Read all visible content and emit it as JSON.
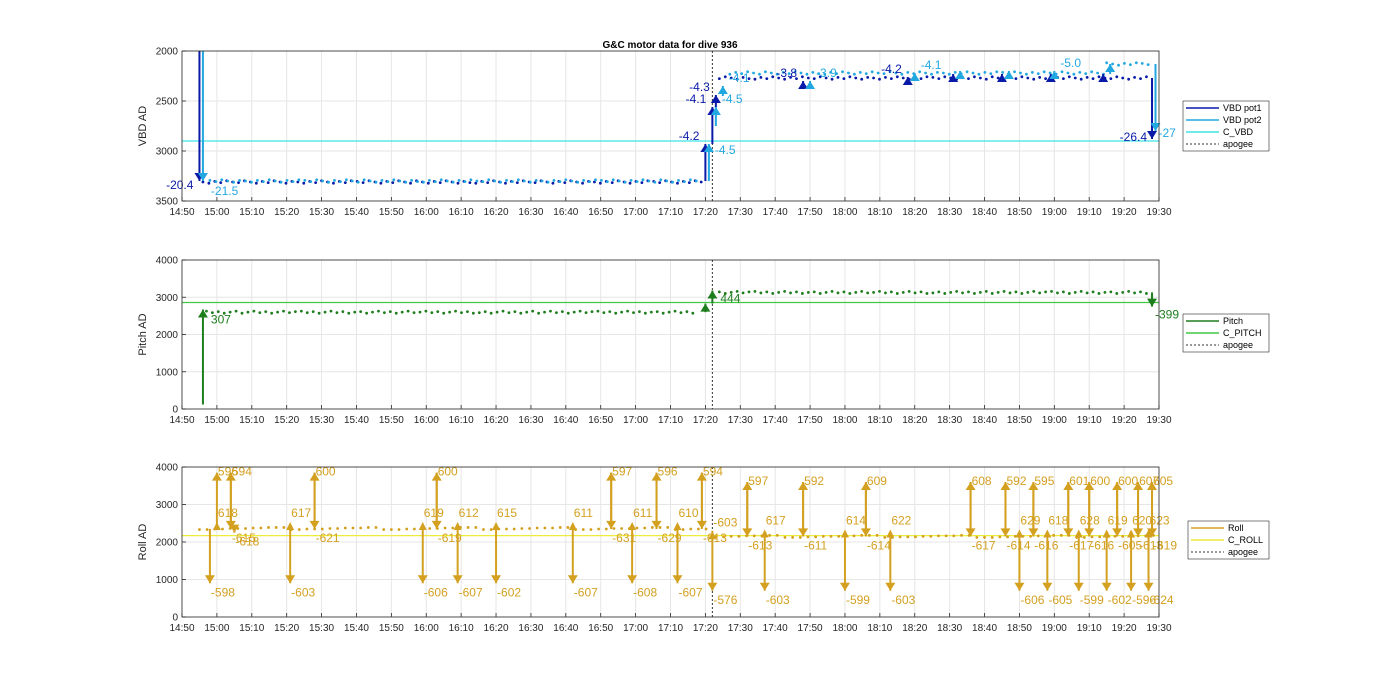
{
  "figure_title": "G&C motor data for dive 936",
  "colors": {
    "vbd1": "#0a1aa8",
    "vbd2": "#22a8e0",
    "c_vbd": "#3fe3e3",
    "pitch": "#1e7e1e",
    "c_pitch": "#42c842",
    "roll": "#d4a020",
    "c_roll": "#ecec3a",
    "apogee": "#333333",
    "grid": "#e6e6e6"
  },
  "chart_data": [
    {
      "type": "line",
      "ylabel": "VBD AD",
      "xlabel": "",
      "ylim": [
        3500,
        2000
      ],
      "y_reversed": true,
      "x_range": [
        "14:50",
        "19:30"
      ],
      "yticks": [
        "2000",
        "2500",
        "3000",
        "3500"
      ],
      "xticks": [
        "14:50",
        "15:00",
        "15:10",
        "15:20",
        "15:30",
        "15:40",
        "15:50",
        "16:00",
        "16:10",
        "16:20",
        "16:30",
        "16:40",
        "16:50",
        "17:00",
        "17:10",
        "17:20",
        "17:30",
        "17:40",
        "17:50",
        "18:00",
        "18:10",
        "18:20",
        "18:30",
        "18:40",
        "18:50",
        "19:00",
        "19:10",
        "19:20",
        "19:30"
      ],
      "grid": true,
      "legend": [
        "VBD pot1",
        "VBD pot2",
        "C_VBD",
        "apogee"
      ],
      "legend_position": "right",
      "apogee": "17:22",
      "c_value": 2900,
      "series": [
        {
          "name": "VBD pot1",
          "segments": [
            {
              "from": "14:56",
              "to": "17:20",
              "value": 3310
            },
            {
              "from": "17:24",
              "to": "19:27",
              "value": 2270
            }
          ]
        },
        {
          "name": "VBD pot2",
          "segments": [
            {
              "from": "14:58",
              "to": "17:19",
              "value": 3300
            },
            {
              "from": "17:27",
              "to": "19:15",
              "value": 2220
            },
            {
              "from": "19:15",
              "to": "19:28",
              "value": 2130
            }
          ]
        }
      ],
      "moves": [
        {
          "t": "14:55",
          "from": 1850,
          "to": 3300,
          "series": "VBD pot1",
          "label": "-20.4"
        },
        {
          "t": "14:56",
          "from": 1870,
          "to": 3300,
          "series": "VBD pot2",
          "label": "-21.5"
        },
        {
          "t": "17:20",
          "from": 3300,
          "to": 2930,
          "series": "VBD pot1",
          "label": "-4.2"
        },
        {
          "t": "17:21",
          "from": 3300,
          "to": 2930,
          "series": "VBD pot2",
          "label": "-4.5"
        },
        {
          "t": "17:22",
          "from": 2930,
          "to": 2560,
          "series": "VBD pot1",
          "label": "-4.1"
        },
        {
          "t": "17:23",
          "from": 2560,
          "to": 2440,
          "series": "VBD pot1",
          "label": "-4.3"
        },
        {
          "t": "17:23",
          "from": 2750,
          "to": 2560,
          "series": "VBD pot2",
          "label": "-4.5"
        },
        {
          "t": "17:25",
          "from": 2450,
          "to": 2350,
          "series": "VBD pot2",
          "label": "-4.1"
        },
        {
          "t": "17:48",
          "from": 2380,
          "to": 2300,
          "series": "VBD pot1",
          "label": "-3.8"
        },
        {
          "t": "17:50",
          "from": 2380,
          "to": 2300,
          "series": "VBD pot2",
          "label": "-3.9"
        },
        {
          "t": "18:18",
          "from": 2340,
          "to": 2260,
          "series": "VBD pot1",
          "label": "-4.2"
        },
        {
          "t": "18:20",
          "from": 2300,
          "to": 2220,
          "series": "VBD pot2",
          "label": "-4.1"
        },
        {
          "t": "18:31",
          "from": 2310,
          "to": 2230,
          "series": "VBD pot1",
          "label": ""
        },
        {
          "t": "18:33",
          "from": 2280,
          "to": 2200,
          "series": "VBD pot2",
          "label": ""
        },
        {
          "t": "18:45",
          "from": 2310,
          "to": 2230,
          "series": "VBD pot1",
          "label": ""
        },
        {
          "t": "18:47",
          "from": 2280,
          "to": 2200,
          "series": "VBD pot2",
          "label": ""
        },
        {
          "t": "18:59",
          "from": 2310,
          "to": 2230,
          "series": "VBD pot1",
          "label": ""
        },
        {
          "t": "19:00",
          "from": 2280,
          "to": 2200,
          "series": "VBD pot2",
          "label": "-5.0"
        },
        {
          "t": "19:14",
          "from": 2310,
          "to": 2230,
          "series": "VBD pot1",
          "label": ""
        },
        {
          "t": "19:16",
          "from": 2230,
          "to": 2130,
          "series": "VBD pot2",
          "label": ""
        },
        {
          "t": "19:28",
          "from": 2270,
          "to": 2880,
          "series": "VBD pot1",
          "label": "-26.4"
        },
        {
          "t": "19:29",
          "from": 2130,
          "to": 2800,
          "series": "VBD pot2",
          "label": "-27"
        }
      ]
    },
    {
      "type": "line",
      "ylabel": "Pitch AD",
      "xlabel": "",
      "ylim": [
        0,
        4000
      ],
      "x_range": [
        "14:50",
        "19:30"
      ],
      "yticks": [
        "0",
        "1000",
        "2000",
        "3000",
        "4000"
      ],
      "xticks": [
        "14:50",
        "15:00",
        "15:10",
        "15:20",
        "15:30",
        "15:40",
        "15:50",
        "16:00",
        "16:10",
        "16:20",
        "16:30",
        "16:40",
        "16:50",
        "17:00",
        "17:10",
        "17:20",
        "17:30",
        "17:40",
        "17:50",
        "18:00",
        "18:10",
        "18:20",
        "18:30",
        "18:40",
        "18:50",
        "19:00",
        "19:10",
        "19:20",
        "19:30"
      ],
      "grid": true,
      "legend": [
        "Pitch",
        "C_PITCH",
        "apogee"
      ],
      "legend_position": "right",
      "apogee": "17:22",
      "c_value": 2860,
      "series": [
        {
          "name": "Pitch",
          "segments": [
            {
              "from": "14:57",
              "to": "17:18",
              "value": 2600
            },
            {
              "from": "17:24",
              "to": "19:27",
              "value": 3130
            }
          ]
        }
      ],
      "moves": [
        {
          "t": "14:56",
          "from": 120,
          "to": 2670,
          "series": "Pitch",
          "label": "307"
        },
        {
          "t": "17:20",
          "from": 2600,
          "to": 2830,
          "series": "Pitch",
          "label": ""
        },
        {
          "t": "17:22",
          "from": 2830,
          "to": 3180,
          "series": "Pitch",
          "label": "444"
        },
        {
          "t": "19:28",
          "from": 3130,
          "to": 2750,
          "series": "Pitch",
          "label": "-399"
        }
      ]
    },
    {
      "type": "line",
      "ylabel": "Roll AD",
      "xlabel": "",
      "ylim": [
        0,
        4000
      ],
      "x_range": [
        "14:50",
        "19:30"
      ],
      "yticks": [
        "0",
        "1000",
        "2000",
        "3000",
        "4000"
      ],
      "xticks": [
        "14:50",
        "15:00",
        "15:10",
        "15:20",
        "15:30",
        "15:40",
        "15:50",
        "16:00",
        "16:10",
        "16:20",
        "16:30",
        "16:40",
        "16:50",
        "17:00",
        "17:10",
        "17:20",
        "17:30",
        "17:40",
        "17:50",
        "18:00",
        "18:10",
        "18:20",
        "18:30",
        "18:40",
        "18:50",
        "19:00",
        "19:10",
        "19:20",
        "19:30"
      ],
      "grid": true,
      "legend": [
        "Roll",
        "C_ROLL",
        "apogee"
      ],
      "legend_position": "right",
      "apogee": "17:22",
      "c_value": 2170,
      "series": [
        {
          "name": "Roll",
          "segments": [
            {
              "from": "14:55",
              "to": "17:21",
              "value": 2360
            },
            {
              "from": "17:23",
              "to": "19:29",
              "value": 2150
            }
          ]
        }
      ],
      "moves": [
        {
          "t": "14:58",
          "from": 2350,
          "to": 900,
          "label": "-598"
        },
        {
          "t": "15:00",
          "from": 2350,
          "to": 3850,
          "label": "596"
        },
        {
          "t": "15:04",
          "from": 3850,
          "to": 2350,
          "label": "-615"
        },
        {
          "t": "15:04",
          "from": 2350,
          "to": 3850,
          "label": "594"
        },
        {
          "t": "15:00",
          "from": 2350,
          "to": 2400,
          "label": "618"
        },
        {
          "t": "15:05",
          "from": 2350,
          "to": 2250,
          "label": "-618"
        },
        {
          "t": "15:21",
          "from": 2350,
          "to": 900,
          "label": "-603"
        },
        {
          "t": "15:21",
          "from": 2350,
          "to": 2400,
          "label": "617"
        },
        {
          "t": "15:28",
          "from": 2350,
          "to": 3850,
          "label": "600"
        },
        {
          "t": "15:28",
          "from": 3850,
          "to": 2350,
          "label": "-621"
        },
        {
          "t": "15:59",
          "from": 2350,
          "to": 900,
          "label": "-606"
        },
        {
          "t": "16:03",
          "from": 2350,
          "to": 3850,
          "label": "600"
        },
        {
          "t": "15:59",
          "from": 2350,
          "to": 2400,
          "label": "619"
        },
        {
          "t": "16:03",
          "from": 3850,
          "to": 2350,
          "label": "-619"
        },
        {
          "t": "16:09",
          "from": 2350,
          "to": 900,
          "label": "-607"
        },
        {
          "t": "16:09",
          "from": 2350,
          "to": 2400,
          "label": "612"
        },
        {
          "t": "16:20",
          "from": 2350,
          "to": 900,
          "label": "-602"
        },
        {
          "t": "16:20",
          "from": 2350,
          "to": 2400,
          "label": "615"
        },
        {
          "t": "16:42",
          "from": 2350,
          "to": 900,
          "label": "-607"
        },
        {
          "t": "16:42",
          "from": 2350,
          "to": 2400,
          "label": "611"
        },
        {
          "t": "16:53",
          "from": 2350,
          "to": 3850,
          "label": "597"
        },
        {
          "t": "16:53",
          "from": 3850,
          "to": 2350,
          "label": "-631"
        },
        {
          "t": "16:59",
          "from": 2350,
          "to": 900,
          "label": "-608"
        },
        {
          "t": "16:59",
          "from": 2350,
          "to": 2400,
          "label": "611"
        },
        {
          "t": "17:06",
          "from": 2350,
          "to": 3850,
          "label": "596"
        },
        {
          "t": "17:06",
          "from": 3850,
          "to": 2350,
          "label": "-629"
        },
        {
          "t": "17:12",
          "from": 2350,
          "to": 900,
          "label": "-607"
        },
        {
          "t": "17:12",
          "from": 2350,
          "to": 2400,
          "label": "610"
        },
        {
          "t": "17:19",
          "from": 2350,
          "to": 3850,
          "label": "594"
        },
        {
          "t": "17:19",
          "from": 3850,
          "to": 2350,
          "label": "-613"
        },
        {
          "t": "17:22",
          "from": 2300,
          "to": 700,
          "label": "-576"
        },
        {
          "t": "17:22",
          "from": 2150,
          "to": 2150,
          "label": "-603"
        },
        {
          "t": "17:32",
          "from": 2150,
          "to": 3600,
          "label": "597"
        },
        {
          "t": "17:32",
          "from": 3600,
          "to": 2150,
          "label": "-613"
        },
        {
          "t": "17:37",
          "from": 2150,
          "to": 700,
          "label": "-603"
        },
        {
          "t": "17:37",
          "from": 2150,
          "to": 2200,
          "label": "617"
        },
        {
          "t": "17:48",
          "from": 2150,
          "to": 3600,
          "label": "592"
        },
        {
          "t": "17:48",
          "from": 3600,
          "to": 2150,
          "label": "-611"
        },
        {
          "t": "18:00",
          "from": 2150,
          "to": 700,
          "label": "-599"
        },
        {
          "t": "18:00",
          "from": 2150,
          "to": 2200,
          "label": "614"
        },
        {
          "t": "18:06",
          "from": 2150,
          "to": 3600,
          "label": "609"
        },
        {
          "t": "18:06",
          "from": 3600,
          "to": 2150,
          "label": "-614"
        },
        {
          "t": "18:13",
          "from": 2150,
          "to": 700,
          "label": "-603"
        },
        {
          "t": "18:13",
          "from": 2150,
          "to": 2200,
          "label": "622"
        },
        {
          "t": "18:36",
          "from": 2150,
          "to": 3600,
          "label": "608"
        },
        {
          "t": "18:36",
          "from": 3600,
          "to": 2150,
          "label": "-617"
        },
        {
          "t": "18:46",
          "from": 2150,
          "to": 3600,
          "label": "592"
        },
        {
          "t": "18:46",
          "from": 3600,
          "to": 2150,
          "label": "-614"
        },
        {
          "t": "18:50",
          "from": 2150,
          "to": 700,
          "label": "-606"
        },
        {
          "t": "18:50",
          "from": 2150,
          "to": 2200,
          "label": "629"
        },
        {
          "t": "18:54",
          "from": 2150,
          "to": 3600,
          "label": "595"
        },
        {
          "t": "18:54",
          "from": 3600,
          "to": 2150,
          "label": "-616"
        },
        {
          "t": "18:58",
          "from": 2150,
          "to": 700,
          "label": "-605"
        },
        {
          "t": "18:58",
          "from": 2150,
          "to": 2200,
          "label": "618"
        },
        {
          "t": "19:04",
          "from": 2150,
          "to": 3600,
          "label": "601"
        },
        {
          "t": "19:04",
          "from": 3600,
          "to": 2150,
          "label": "-617"
        },
        {
          "t": "19:07",
          "from": 2150,
          "to": 700,
          "label": "-599"
        },
        {
          "t": "19:07",
          "from": 2150,
          "to": 2200,
          "label": "628"
        },
        {
          "t": "19:10",
          "from": 2150,
          "to": 3600,
          "label": "600"
        },
        {
          "t": "19:10",
          "from": 3600,
          "to": 2150,
          "label": "-616"
        },
        {
          "t": "19:15",
          "from": 2150,
          "to": 700,
          "label": "-602"
        },
        {
          "t": "19:15",
          "from": 2150,
          "to": 2200,
          "label": "619"
        },
        {
          "t": "19:18",
          "from": 2150,
          "to": 3600,
          "label": "600"
        },
        {
          "t": "19:18",
          "from": 3600,
          "to": 2150,
          "label": "-605"
        },
        {
          "t": "19:22",
          "from": 2150,
          "to": 700,
          "label": "-596"
        },
        {
          "t": "19:22",
          "from": 2150,
          "to": 2200,
          "label": "620"
        },
        {
          "t": "19:24",
          "from": 2150,
          "to": 3600,
          "label": "607"
        },
        {
          "t": "19:24",
          "from": 3600,
          "to": 2150,
          "label": "-613"
        },
        {
          "t": "19:27",
          "from": 2150,
          "to": 700,
          "label": "-624"
        },
        {
          "t": "19:27",
          "from": 2150,
          "to": 2200,
          "label": "623"
        },
        {
          "t": "19:28",
          "from": 2150,
          "to": 3600,
          "label": "605"
        },
        {
          "t": "19:28",
          "from": 3600,
          "to": 2150,
          "label": "-619"
        }
      ]
    }
  ]
}
